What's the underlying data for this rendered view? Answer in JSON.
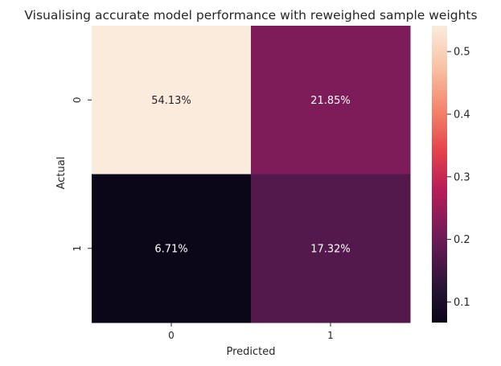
{
  "chart_data": {
    "type": "heatmap",
    "title": "Visualising accurate model performance with reweighed sample weights",
    "xlabel": "Predicted",
    "ylabel": "Actual",
    "x_categories": [
      "0",
      "1"
    ],
    "y_categories": [
      "0",
      "1"
    ],
    "values": [
      [
        0.5413,
        0.2185
      ],
      [
        0.0671,
        0.1732
      ]
    ],
    "cell_labels": [
      [
        "54.13%",
        "21.85%"
      ],
      [
        "6.71%",
        "17.32%"
      ]
    ],
    "colormap": "rocket",
    "colorbar": {
      "range": [
        0.0671,
        0.5413
      ],
      "ticks": [
        0.1,
        0.2,
        0.3,
        0.4,
        0.5
      ],
      "tick_labels": [
        "0.1",
        "0.2",
        "0.3",
        "0.4",
        "0.5"
      ]
    }
  }
}
